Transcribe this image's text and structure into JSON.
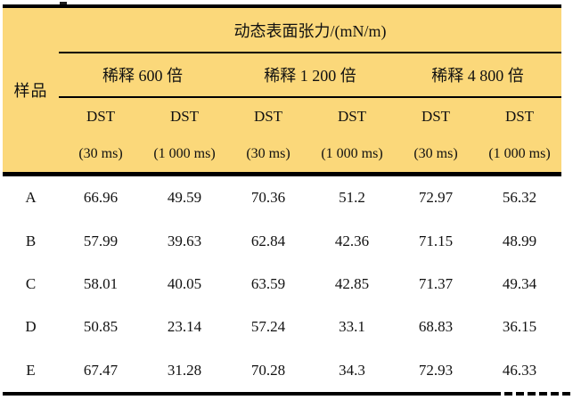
{
  "colors": {
    "header_bg": "#FBD87A",
    "border_color": "#000000",
    "text_color": "#111111"
  },
  "table": {
    "top_header": "动态表面张力/(mN/m)",
    "sample_col_header": "样品",
    "dilution_groups": [
      {
        "label": "稀释 600 倍"
      },
      {
        "label": "稀释 1 200 倍"
      },
      {
        "label": "稀释 4 800 倍"
      }
    ],
    "sub_headers": [
      {
        "line1": "DST",
        "line2": "(30 ms)"
      },
      {
        "line1": "DST",
        "line2": "(1 000 ms)"
      },
      {
        "line1": "DST",
        "line2": "(30 ms)"
      },
      {
        "line1": "DST",
        "line2": "(1 000 ms)"
      },
      {
        "line1": "DST",
        "line2": "(30 ms)"
      },
      {
        "line1": "DST",
        "line2": "(1 000 ms)"
      }
    ],
    "rows": [
      {
        "sample": "A",
        "values": [
          "66.96",
          "49.59",
          "70.36",
          "51.2",
          "72.97",
          "56.32"
        ]
      },
      {
        "sample": "B",
        "values": [
          "57.99",
          "39.63",
          "62.84",
          "42.36",
          "71.15",
          "48.99"
        ]
      },
      {
        "sample": "C",
        "values": [
          "58.01",
          "40.05",
          "63.59",
          "42.85",
          "71.37",
          "49.34"
        ]
      },
      {
        "sample": "D",
        "values": [
          "50.85",
          "23.14",
          "57.24",
          "33.1",
          "68.83",
          "36.15"
        ]
      },
      {
        "sample": "E",
        "values": [
          "67.47",
          "31.28",
          "70.28",
          "34.3",
          "72.93",
          "46.33"
        ]
      }
    ]
  }
}
